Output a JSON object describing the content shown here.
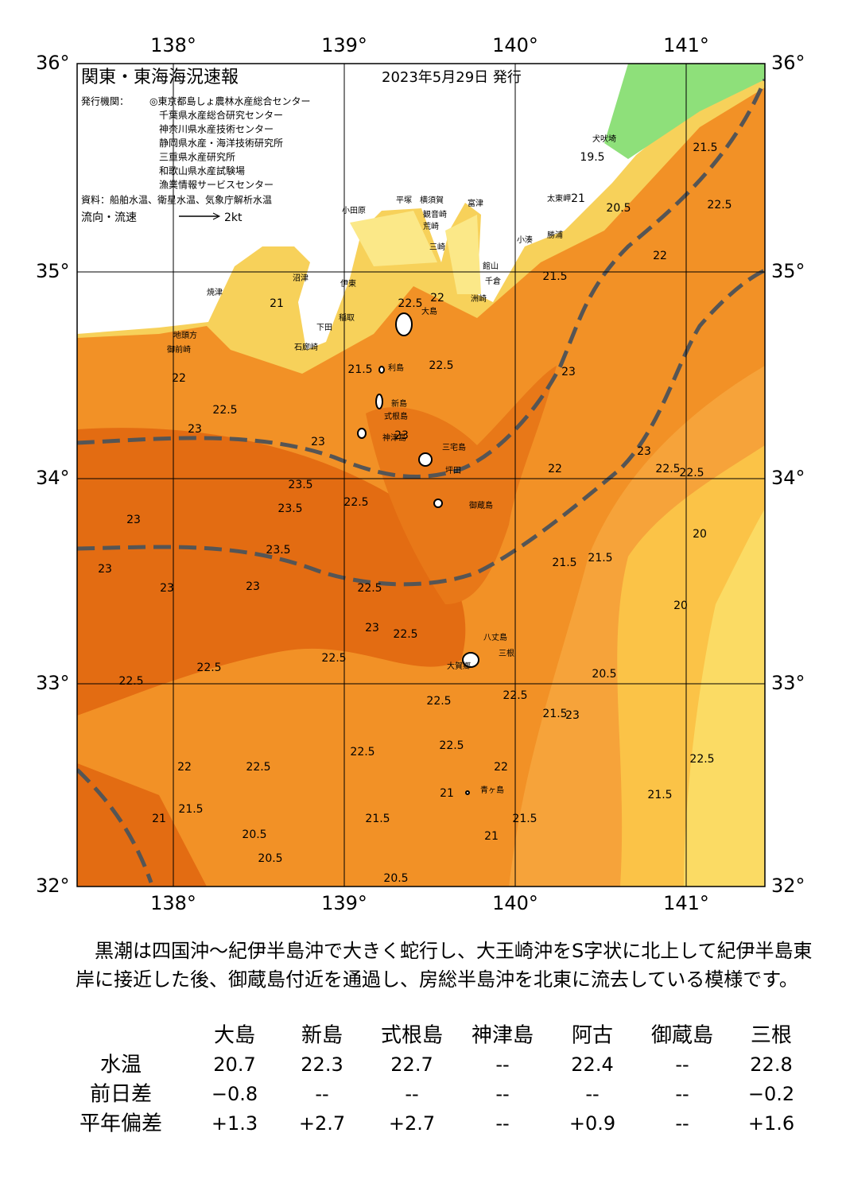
{
  "header": {
    "title": "関東・東海海況速報",
    "date": "2023年5月29日 発行"
  },
  "issuers": {
    "label": "発行機関：",
    "list": [
      "◎東京都島しょ農林水産総合センター",
      "千葉県水産総合研究センター",
      "神奈川県水産技術センター",
      "静岡県水産・海洋技術研究所",
      "三重県水産研究所",
      "和歌山県水産試験場",
      "漁業情報サービスセンター"
    ]
  },
  "source": "資料：船舶水温、衛星水温、気象庁解析水温",
  "legend": {
    "label": "流向・流速",
    "speed": "2kt"
  },
  "axes": {
    "lon_labels": [
      "138°",
      "139°",
      "140°",
      "141°"
    ],
    "lat_labels": [
      "36°",
      "35°",
      "34°",
      "33°",
      "32°"
    ]
  },
  "places": [
    "犬吠埼",
    "太東岬",
    "勝浦",
    "小湊",
    "平塚",
    "横須賀",
    "観音崎",
    "富津",
    "小田原",
    "荒崎",
    "三崎",
    "館山",
    "千倉",
    "洲崎",
    "沼津",
    "伊東",
    "焼津",
    "稲取",
    "下田",
    "石廊崎",
    "御前崎",
    "地頭方",
    "大島",
    "利島",
    "新島",
    "式根島",
    "神津島",
    "三宅島",
    "坪田",
    "御蔵島",
    "八丈島",
    "三根",
    "大賀郷",
    "青ヶ島"
  ],
  "contour_labels": [
    "19.5",
    "20.5",
    "21",
    "21.5",
    "22.5",
    "22",
    "21.5",
    "21",
    "22",
    "22.5",
    "23",
    "22",
    "22.5",
    "23",
    "21.5",
    "23",
    "22.5",
    "23",
    "23.5",
    "23.5",
    "23",
    "23.5",
    "23",
    "23",
    "23",
    "22.5",
    "22.5",
    "22.5",
    "23",
    "22.5",
    "22.5",
    "22.5",
    "22.5",
    "22.5",
    "22.5",
    "22",
    "22",
    "22.5",
    "21.5",
    "21",
    "20.5",
    "20.5",
    "21.5",
    "20.5",
    "21",
    "21",
    "21.5",
    "22.5",
    "21.5",
    "20.5",
    "20",
    "23",
    "22.5",
    "22.5",
    "20",
    "21.5",
    "21.5",
    "21.5",
    "23",
    "22.5",
    "22"
  ],
  "description": "黒潮は四国沖～紀伊半島沖で大きく蛇行し、大王崎沖をS字状に北上して紀伊半島東岸に接近した後、御蔵島付近を通過し、房総半島沖を北東に流去している模様です。",
  "table": {
    "columns": [
      "大島",
      "新島",
      "式根島",
      "神津島",
      "阿古",
      "御蔵島",
      "三根"
    ],
    "rows": [
      {
        "label": "水温",
        "cells": [
          "20.7",
          "22.3",
          "22.7",
          "--",
          "22.4",
          "--",
          "22.8"
        ]
      },
      {
        "label": "前日差",
        "cells": [
          "−0.8",
          "--",
          "--",
          "--",
          "--",
          "--",
          "−0.2"
        ]
      },
      {
        "label": "平年偏差",
        "cells": [
          "+1.3",
          "+2.7",
          "+2.7",
          "--",
          "+0.9",
          "--",
          "+1.6"
        ]
      }
    ]
  }
}
